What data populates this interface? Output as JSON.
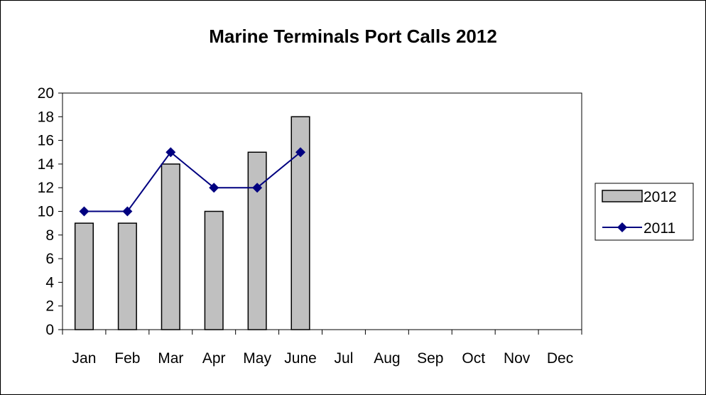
{
  "chart_data": {
    "type": "bar",
    "title": "Marine Terminals Port Calls 2012",
    "xlabel": "",
    "ylabel": "",
    "categories": [
      "Jan",
      "Feb",
      "Mar",
      "Apr",
      "May",
      "June",
      "Jul",
      "Aug",
      "Sep",
      "Oct",
      "Nov",
      "Dec"
    ],
    "ylim": [
      0,
      20
    ],
    "yticks": [
      0,
      2,
      4,
      6,
      8,
      10,
      12,
      14,
      16,
      18,
      20
    ],
    "grid": false,
    "legend_position": "right",
    "series": [
      {
        "name": "2012",
        "type": "bar",
        "values": [
          9,
          9,
          14,
          10,
          15,
          18,
          null,
          null,
          null,
          null,
          null,
          null
        ],
        "color": "#c0c0c0",
        "edge_color": "#000000"
      },
      {
        "name": "2011",
        "type": "line",
        "marker": "diamond",
        "values": [
          10,
          10,
          15,
          12,
          12,
          15,
          null,
          null,
          null,
          null,
          null,
          null
        ],
        "color": "#000080"
      }
    ]
  }
}
